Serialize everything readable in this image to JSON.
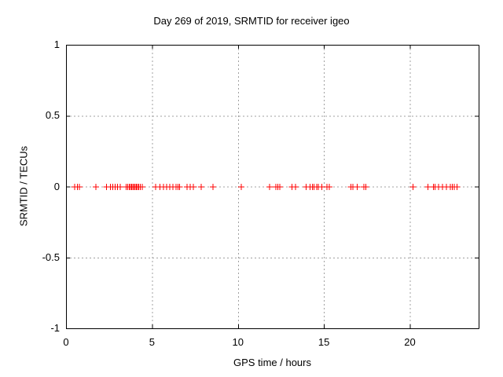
{
  "chart_data": {
    "type": "scatter",
    "title": "Day 269 of 2019, SRMTID for receiver igeo",
    "xlabel": "GPS time / hours",
    "ylabel": "SRMTID / TECUs",
    "xlim": [
      0,
      24
    ],
    "ylim": [
      -1,
      1
    ],
    "xticks": [
      0,
      5,
      10,
      15,
      20
    ],
    "xtick_labels": [
      "0",
      "5",
      "10",
      "15",
      "20"
    ],
    "yticks": [
      -1,
      -0.5,
      0,
      0.5,
      1
    ],
    "ytick_labels": [
      "-1",
      "-0.5",
      "0",
      "0.5",
      "1"
    ],
    "grid": true,
    "grid_style": "dashed",
    "legend": false,
    "colors": {
      "background": "#ffffff",
      "axis": "#000000",
      "grid": "#a0a0a0",
      "marker": "#ff0000"
    },
    "series": [
      {
        "name": "SRMTID",
        "marker": "plus",
        "marker_size": 7,
        "color": "#ff0000",
        "x": [
          0.47,
          0.64,
          0.76,
          1.72,
          2.33,
          2.56,
          2.7,
          2.84,
          2.97,
          3.12,
          3.47,
          3.56,
          3.65,
          3.72,
          3.79,
          3.86,
          3.93,
          4.0,
          4.07,
          4.14,
          4.21,
          4.3,
          4.42,
          5.18,
          5.45,
          5.64,
          5.82,
          6.0,
          6.19,
          6.37,
          6.48,
          6.58,
          7.01,
          7.19,
          7.39,
          7.85,
          8.53,
          10.18,
          11.81,
          12.19,
          12.3,
          12.42,
          13.11,
          13.33,
          13.94,
          14.17,
          14.3,
          14.4,
          14.57,
          14.65,
          14.86,
          15.16,
          15.28,
          16.54,
          16.66,
          16.91,
          17.3,
          17.42,
          20.16,
          21.03,
          21.34,
          21.45,
          21.64,
          21.87,
          22.1,
          22.32,
          22.45,
          22.55,
          22.71
        ],
        "y": [
          0,
          0,
          0,
          0,
          0,
          0,
          0,
          0,
          0,
          0,
          0,
          0,
          0,
          0,
          0,
          0,
          0,
          0,
          0,
          0,
          0,
          0,
          0,
          0,
          0,
          0,
          0,
          0,
          0,
          0,
          0,
          0,
          0,
          0,
          0,
          0,
          0,
          0,
          0,
          0,
          0,
          0,
          0,
          0,
          0,
          0,
          0,
          0,
          0,
          0,
          0,
          0,
          0,
          0,
          0,
          0,
          0,
          0,
          0,
          0,
          0,
          0,
          0,
          0,
          0,
          0,
          0,
          0,
          0
        ]
      }
    ]
  }
}
